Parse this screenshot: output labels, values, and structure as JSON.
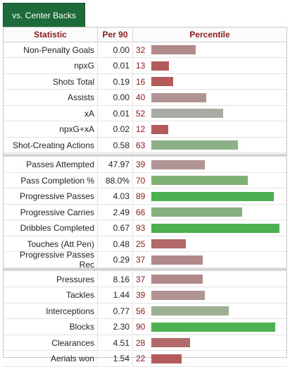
{
  "tab": {
    "label": "vs. Center Backs"
  },
  "header": {
    "statistic": "Statistic",
    "per90": "Per 90",
    "percentile": "Percentile"
  },
  "groups": [
    [
      {
        "label": "Non-Penalty Goals",
        "per90": "0.00",
        "percentile": 32,
        "color": "#b08a8a"
      },
      {
        "label": "npxG",
        "per90": "0.01",
        "percentile": 13,
        "color": "#b35a5a"
      },
      {
        "label": "Shots Total",
        "per90": "0.19",
        "percentile": 16,
        "color": "#b35a5a"
      },
      {
        "label": "Assists",
        "per90": "0.00",
        "percentile": 40,
        "color": "#b09494"
      },
      {
        "label": "xA",
        "per90": "0.01",
        "percentile": 52,
        "color": "#a8aaa4"
      },
      {
        "label": "npxG+xA",
        "per90": "0.02",
        "percentile": 12,
        "color": "#b35a5a"
      },
      {
        "label": "Shot-Creating Actions",
        "per90": "0.58",
        "percentile": 63,
        "color": "#8eb088"
      }
    ],
    [
      {
        "label": "Passes Attempted",
        "per90": "47.97",
        "percentile": 39,
        "color": "#b09494"
      },
      {
        "label": "Pass Completion %",
        "per90": "88.0%",
        "percentile": 70,
        "color": "#7fb074"
      },
      {
        "label": "Progressive Passes",
        "per90": "4.03",
        "percentile": 89,
        "color": "#4caf50"
      },
      {
        "label": "Progressive Carries",
        "per90": "2.49",
        "percentile": 66,
        "color": "#83b07c"
      },
      {
        "label": "Dribbles Completed",
        "per90": "0.67",
        "percentile": 93,
        "color": "#4caf50"
      },
      {
        "label": "Touches (Att Pen)",
        "per90": "0.48",
        "percentile": 25,
        "color": "#b36a6a"
      },
      {
        "label": "Progressive Passes Rec",
        "per90": "0.29",
        "percentile": 37,
        "color": "#b08a8a"
      }
    ],
    [
      {
        "label": "Pressures",
        "per90": "8.16",
        "percentile": 37,
        "color": "#b08a8a"
      },
      {
        "label": "Tackles",
        "per90": "1.44",
        "percentile": 39,
        "color": "#b09494"
      },
      {
        "label": "Interceptions",
        "per90": "0.77",
        "percentile": 56,
        "color": "#9cb094"
      },
      {
        "label": "Blocks",
        "per90": "2.30",
        "percentile": 90,
        "color": "#4caf50"
      },
      {
        "label": "Clearances",
        "per90": "4.51",
        "percentile": 28,
        "color": "#b36a6a"
      },
      {
        "label": "Aerials won",
        "per90": "1.54",
        "percentile": 22,
        "color": "#b35a5a"
      }
    ]
  ]
}
